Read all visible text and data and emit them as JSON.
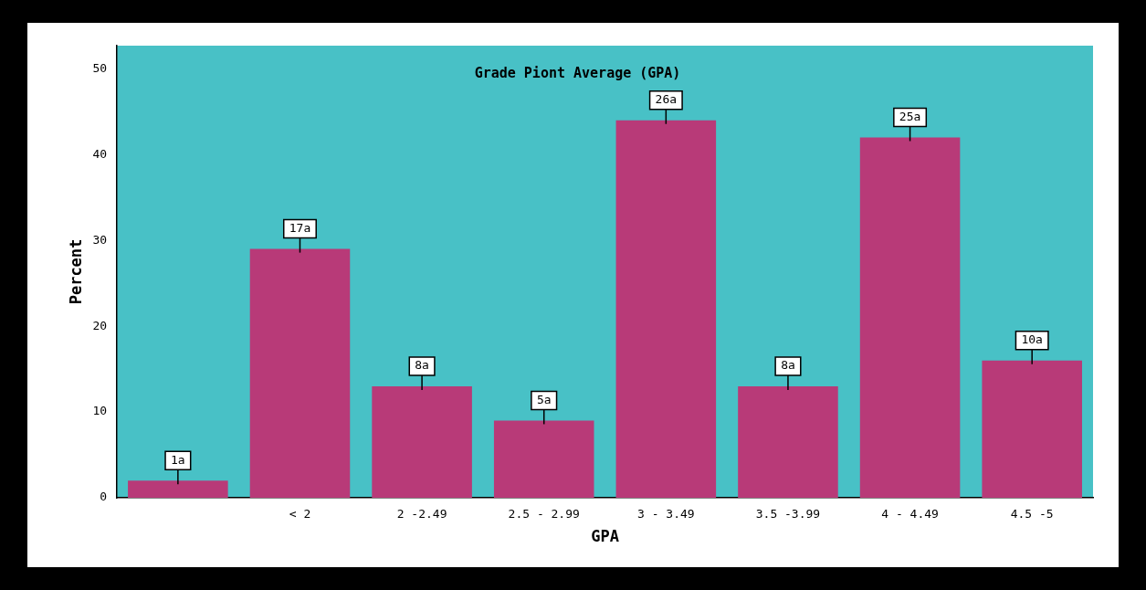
{
  "chart_data": {
    "type": "bar",
    "title": "Grade Piont Average (GPA)",
    "xlabel": "GPA",
    "ylabel": "Percent",
    "categories": [
      null,
      "< 2",
      "2 -2.49",
      "2.5 - 2.99",
      "3 - 3.49",
      "3.5 -3.99",
      "4 - 4.49",
      "4.5 -5"
    ],
    "values": [
      2,
      29,
      13,
      9,
      44,
      13,
      42,
      16
    ],
    "annotations": [
      "1a",
      "17a",
      "8a",
      "5a",
      "26a",
      "8a",
      "25a",
      "10a"
    ],
    "color": "#b83a78",
    "ylim": [
      0,
      52.7
    ],
    "yticks": [
      0,
      10,
      20,
      30,
      40,
      50
    ],
    "grid": false,
    "legend": false
  }
}
